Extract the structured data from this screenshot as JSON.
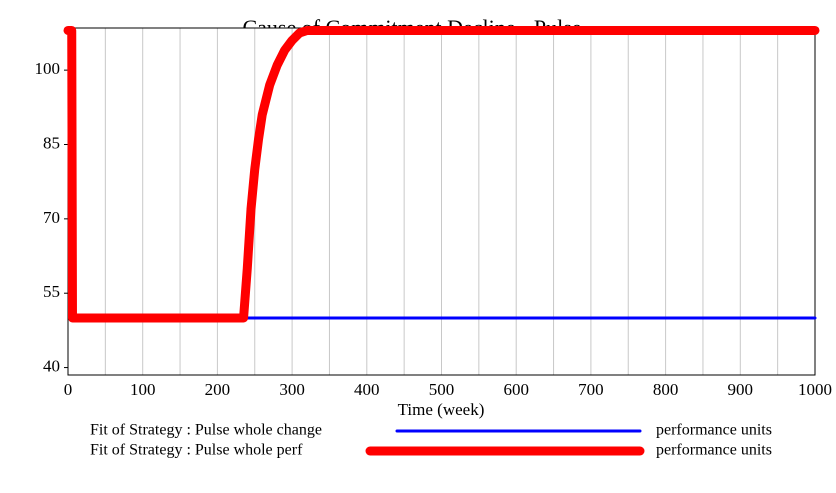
{
  "chart_data": {
    "type": "line",
    "title": "Cause of Commitment Decline - Pulse",
    "xlabel": "Time (week)",
    "xlim": [
      0,
      1000
    ],
    "xticks": [
      0,
      100,
      200,
      300,
      400,
      500,
      600,
      700,
      800,
      900,
      1000
    ],
    "ylim": [
      38.5,
      108.5
    ],
    "yticks": [
      40,
      55,
      70,
      85,
      100
    ],
    "grid": true,
    "series": [
      {
        "name": "Fit of Strategy : Pulse whole change",
        "unit": "performance units",
        "color": "#0000ff",
        "x": [
          0,
          5,
          6,
          1000
        ],
        "values": [
          108,
          108,
          50,
          50
        ]
      },
      {
        "name": "Fit of Strategy : Pulse whole perf",
        "unit": "performance units",
        "color": "#ff0000",
        "x": [
          0,
          5,
          6,
          235,
          240,
          245,
          250,
          255,
          260,
          270,
          280,
          290,
          300,
          310,
          320,
          1000
        ],
        "values": [
          108,
          108,
          50,
          50,
          60,
          72,
          80,
          86,
          91,
          97,
          101,
          104,
          106,
          107.5,
          108,
          108
        ]
      }
    ]
  }
}
